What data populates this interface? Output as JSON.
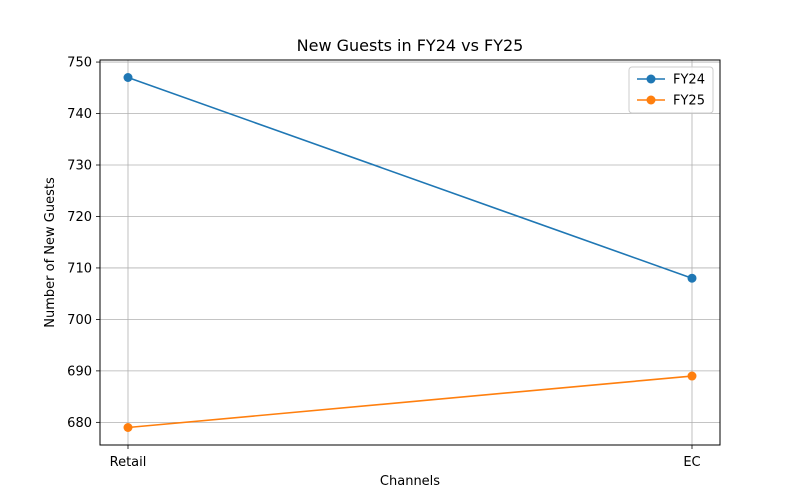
{
  "chart_data": {
    "type": "line",
    "title": "New Guests in FY24 vs FY25",
    "xlabel": "Channels",
    "ylabel": "Number of New Guests",
    "categories": [
      "Retail",
      "EC"
    ],
    "series": [
      {
        "name": "FY24",
        "values": [
          747,
          708
        ],
        "color": "#1f77b4"
      },
      {
        "name": "FY25",
        "values": [
          679,
          689
        ],
        "color": "#ff7f0e"
      }
    ],
    "ylim": [
      675.6,
      750.4
    ],
    "yticks": [
      680,
      690,
      700,
      710,
      720,
      730,
      740,
      750
    ],
    "grid": true,
    "legend_position": "top-right"
  }
}
